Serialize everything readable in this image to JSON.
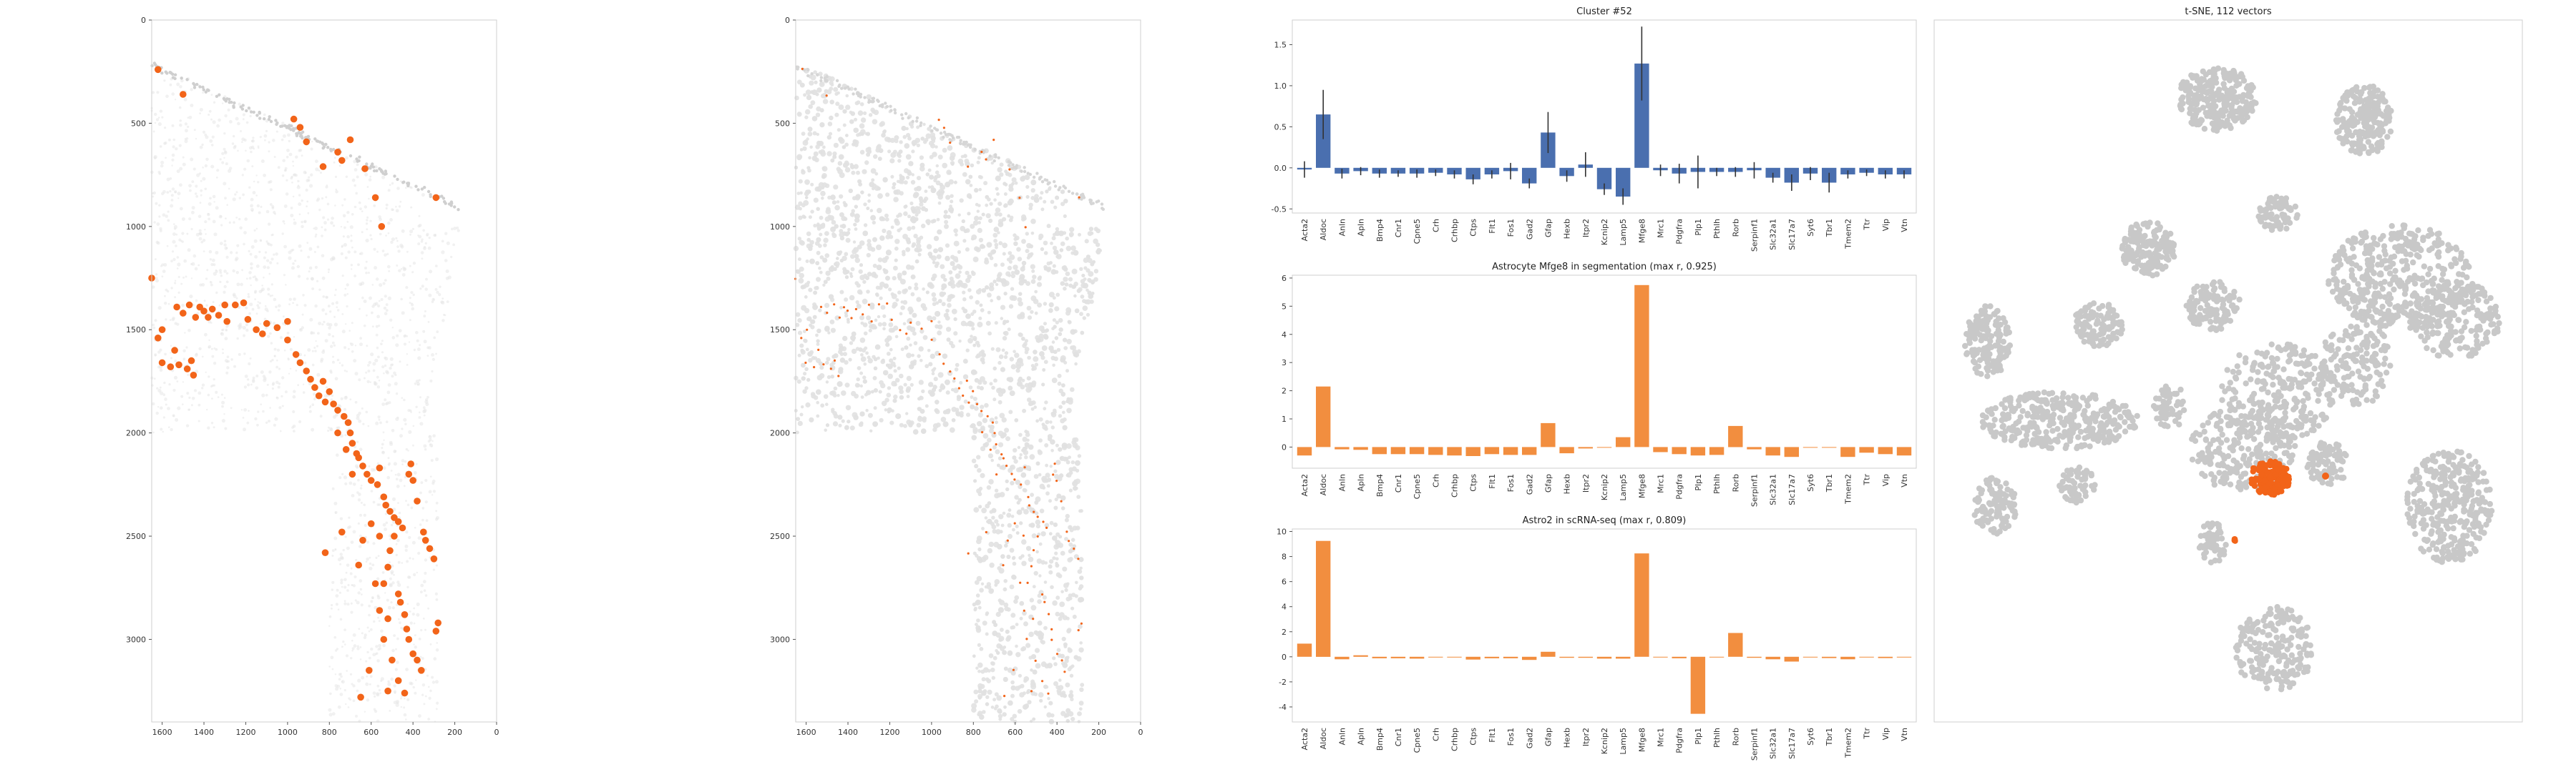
{
  "chart_data": [
    {
      "type": "scatter",
      "name": "spatial-highlight",
      "xlim": [
        1650,
        0
      ],
      "ylim": [
        0,
        3400
      ],
      "xticks": [
        1600,
        1400,
        1200,
        1000,
        800,
        600,
        400,
        200,
        0
      ],
      "yticks": [
        0,
        500,
        1000,
        1500,
        2000,
        2500,
        3000
      ],
      "grid": false,
      "highlight_color": "#f26419",
      "highlight_points": [
        [
          1620,
          240
        ],
        [
          1500,
          360
        ],
        [
          1650,
          1250
        ],
        [
          1530,
          1390
        ],
        [
          1500,
          1420
        ],
        [
          1470,
          1380
        ],
        [
          1440,
          1440
        ],
        [
          1420,
          1390
        ],
        [
          1400,
          1410
        ],
        [
          1380,
          1440
        ],
        [
          1360,
          1400
        ],
        [
          1330,
          1430
        ],
        [
          1300,
          1380
        ],
        [
          1290,
          1460
        ],
        [
          1250,
          1380
        ],
        [
          1210,
          1370
        ],
        [
          1190,
          1450
        ],
        [
          1150,
          1500
        ],
        [
          1120,
          1520
        ],
        [
          1100,
          1470
        ],
        [
          1050,
          1490
        ],
        [
          1000,
          1460
        ],
        [
          1000,
          1550
        ],
        [
          960,
          1620
        ],
        [
          940,
          1660
        ],
        [
          910,
          1700
        ],
        [
          890,
          1740
        ],
        [
          870,
          1780
        ],
        [
          850,
          1820
        ],
        [
          830,
          1750
        ],
        [
          820,
          1850
        ],
        [
          800,
          1800
        ],
        [
          780,
          1860
        ],
        [
          760,
          1890
        ],
        [
          730,
          1920
        ],
        [
          710,
          1950
        ],
        [
          700,
          2000
        ],
        [
          690,
          2050
        ],
        [
          670,
          2100
        ],
        [
          660,
          2120
        ],
        [
          640,
          2160
        ],
        [
          620,
          2200
        ],
        [
          600,
          2230
        ],
        [
          570,
          2250
        ],
        [
          560,
          2170
        ],
        [
          540,
          2310
        ],
        [
          530,
          2350
        ],
        [
          510,
          2380
        ],
        [
          490,
          2410
        ],
        [
          470,
          2430
        ],
        [
          450,
          2460
        ],
        [
          420,
          2200
        ],
        [
          410,
          2150
        ],
        [
          400,
          2230
        ],
        [
          380,
          2330
        ],
        [
          350,
          2480
        ],
        [
          340,
          2520
        ],
        [
          320,
          2560
        ],
        [
          300,
          2610
        ],
        [
          490,
          2500
        ],
        [
          510,
          2570
        ],
        [
          520,
          2650
        ],
        [
          540,
          2730
        ],
        [
          470,
          2780
        ],
        [
          460,
          2820
        ],
        [
          440,
          2880
        ],
        [
          430,
          2950
        ],
        [
          420,
          3000
        ],
        [
          400,
          3070
        ],
        [
          380,
          3100
        ],
        [
          360,
          3150
        ],
        [
          520,
          3250
        ],
        [
          740,
          2480
        ],
        [
          820,
          2580
        ],
        [
          660,
          2640
        ],
        [
          640,
          2520
        ],
        [
          600,
          2440
        ],
        [
          560,
          2500
        ],
        [
          580,
          2730
        ],
        [
          560,
          2860
        ],
        [
          540,
          3000
        ],
        [
          610,
          3150
        ],
        [
          500,
          3100
        ],
        [
          470,
          3200
        ],
        [
          440,
          3260
        ],
        [
          520,
          2900
        ],
        [
          650,
          3280
        ],
        [
          280,
          2920
        ],
        [
          290,
          2960
        ],
        [
          1560,
          1680
        ],
        [
          1520,
          1670
        ],
        [
          1480,
          1690
        ],
        [
          1450,
          1720
        ],
        [
          1600,
          1660
        ],
        [
          1620,
          1540
        ],
        [
          1600,
          1500
        ],
        [
          1540,
          1600
        ],
        [
          1460,
          1650
        ],
        [
          740,
          680
        ],
        [
          760,
          640
        ],
        [
          700,
          580
        ],
        [
          630,
          720
        ],
        [
          580,
          860
        ],
        [
          550,
          1000
        ],
        [
          830,
          710
        ],
        [
          910,
          590
        ],
        [
          940,
          520
        ],
        [
          970,
          480
        ],
        [
          290,
          860
        ],
        [
          760,
          2000
        ],
        [
          720,
          2080
        ],
        [
          690,
          2200
        ]
      ]
    },
    {
      "type": "scatter",
      "name": "spatial-cells",
      "xlim": [
        1650,
        0
      ],
      "ylim": [
        0,
        3400
      ],
      "xticks": [
        1600,
        1400,
        1200,
        1000,
        800,
        600,
        400,
        200,
        0
      ],
      "yticks": [
        0,
        500,
        1000,
        1500,
        2000,
        2500,
        3000
      ],
      "grid": false,
      "cell_color": "#e1e1e1",
      "highlight_color": "#f26419"
    },
    {
      "type": "bar",
      "title": "Cluster #52",
      "color": "#4a6faf",
      "categories": [
        "Acta2",
        "Aldoc",
        "Anln",
        "Apln",
        "Bmp4",
        "Cnr1",
        "Cpne5",
        "Crh",
        "Crhbp",
        "Ctps",
        "Flt1",
        "Fos1",
        "Gad2",
        "Gfap",
        "Hexb",
        "Itpr2",
        "Kcnip2",
        "Lamp5",
        "Mfge8",
        "Mrc1",
        "Pdgfra",
        "Plp1",
        "Pthlh",
        "Rorb",
        "Serpinf1",
        "Slc32a1",
        "Slc17a7",
        "Syt6",
        "Tbr1",
        "Tmem2",
        "Ttr",
        "Vip",
        "Vtn"
      ],
      "values": [
        -0.02,
        0.65,
        -0.07,
        -0.04,
        -0.07,
        -0.07,
        -0.07,
        -0.06,
        -0.08,
        -0.14,
        -0.08,
        -0.04,
        -0.19,
        0.43,
        -0.1,
        0.04,
        -0.26,
        -0.35,
        1.27,
        -0.03,
        -0.07,
        -0.05,
        -0.05,
        -0.05,
        -0.03,
        -0.12,
        -0.18,
        -0.07,
        -0.18,
        -0.08,
        -0.06,
        -0.08,
        -0.08
      ],
      "errors": [
        0.1,
        0.3,
        0.06,
        0.05,
        0.05,
        0.04,
        0.05,
        0.04,
        0.05,
        0.06,
        0.05,
        0.1,
        0.06,
        0.25,
        0.07,
        0.15,
        0.07,
        0.1,
        0.45,
        0.07,
        0.12,
        0.2,
        0.05,
        0.06,
        0.1,
        0.06,
        0.1,
        0.08,
        0.12,
        0.05,
        0.04,
        0.05,
        0.05
      ],
      "ylim": [
        -0.55,
        1.8
      ],
      "yticks": [
        -0.5,
        0.0,
        0.5,
        1.0,
        1.5
      ],
      "ytick_labels": [
        "-0.5",
        "0.0",
        "0.5",
        "1.0",
        "1.5"
      ]
    },
    {
      "type": "bar",
      "title": "Astrocyte Mfge8 in segmentation (max r, 0.925)",
      "color": "#f28e3f",
      "categories": [
        "Acta2",
        "Aldoc",
        "Anln",
        "Apln",
        "Bmp4",
        "Cnr1",
        "Cpne5",
        "Crh",
        "Crhbp",
        "Ctps",
        "Flt1",
        "Fos1",
        "Gad2",
        "Gfap",
        "Hexb",
        "Itpr2",
        "Kcnip2",
        "Lamp5",
        "Mfge8",
        "Mrc1",
        "Pdgfra",
        "Plp1",
        "Pthlh",
        "Rorb",
        "Serpinf1",
        "Slc32a1",
        "Slc17a7",
        "Syt6",
        "Tbr1",
        "Tmem2",
        "Ttr",
        "Vip",
        "Vtn"
      ],
      "values": [
        -0.3,
        2.15,
        -0.08,
        -0.1,
        -0.25,
        -0.25,
        -0.25,
        -0.28,
        -0.3,
        -0.32,
        -0.25,
        -0.28,
        -0.28,
        0.85,
        -0.22,
        -0.05,
        -0.02,
        0.35,
        5.75,
        -0.18,
        -0.25,
        -0.3,
        -0.28,
        0.75,
        -0.08,
        -0.3,
        -0.35,
        0.0,
        0.0,
        -0.35,
        -0.2,
        -0.25,
        -0.3
      ],
      "ylim": [
        -0.75,
        6.1
      ],
      "yticks": [
        0,
        1,
        2,
        3,
        4,
        5,
        6
      ],
      "ytick_labels": [
        "0",
        "1",
        "2",
        "3",
        "4",
        "5",
        "6"
      ]
    },
    {
      "type": "bar",
      "title": "Astro2 in scRNA-seq (max r, 0.809)",
      "color": "#f28e3f",
      "categories": [
        "Acta2",
        "Aldoc",
        "Anln",
        "Apln",
        "Bmp4",
        "Cnr1",
        "Cpne5",
        "Crh",
        "Crhbp",
        "Ctps",
        "Flt1",
        "Fos1",
        "Gad2",
        "Gfap",
        "Hexb",
        "Itpr2",
        "Kcnip2",
        "Lamp5",
        "Mfge8",
        "Mrc1",
        "Pdgfra",
        "Plp1",
        "Pthlh",
        "Rorb",
        "Serpinf1",
        "Slc32a1",
        "Slc17a7",
        "Syt6",
        "Tbr1",
        "Tmem2",
        "Ttr",
        "Vip",
        "Vtn"
      ],
      "values": [
        1.05,
        9.25,
        -0.2,
        0.12,
        -0.12,
        -0.12,
        -0.15,
        0.0,
        0.0,
        -0.22,
        -0.12,
        -0.12,
        -0.25,
        0.4,
        -0.08,
        -0.08,
        -0.15,
        -0.15,
        8.25,
        0.0,
        -0.12,
        -4.55,
        0.0,
        1.9,
        -0.08,
        -0.2,
        -0.38,
        0.0,
        -0.1,
        -0.2,
        0.0,
        -0.1,
        0.0
      ],
      "ylim": [
        -5.2,
        10.2
      ],
      "yticks": [
        -4,
        -2,
        0,
        2,
        4,
        6,
        8,
        10
      ],
      "ytick_labels": [
        "-4",
        "-2",
        "0",
        "2",
        "4",
        "6",
        "8",
        "10"
      ]
    },
    {
      "type": "scatter",
      "title": "t-SNE, 112 vectors",
      "base_color": "#c8c8c8",
      "highlight_color": "#f26419",
      "axes": "none"
    }
  ]
}
